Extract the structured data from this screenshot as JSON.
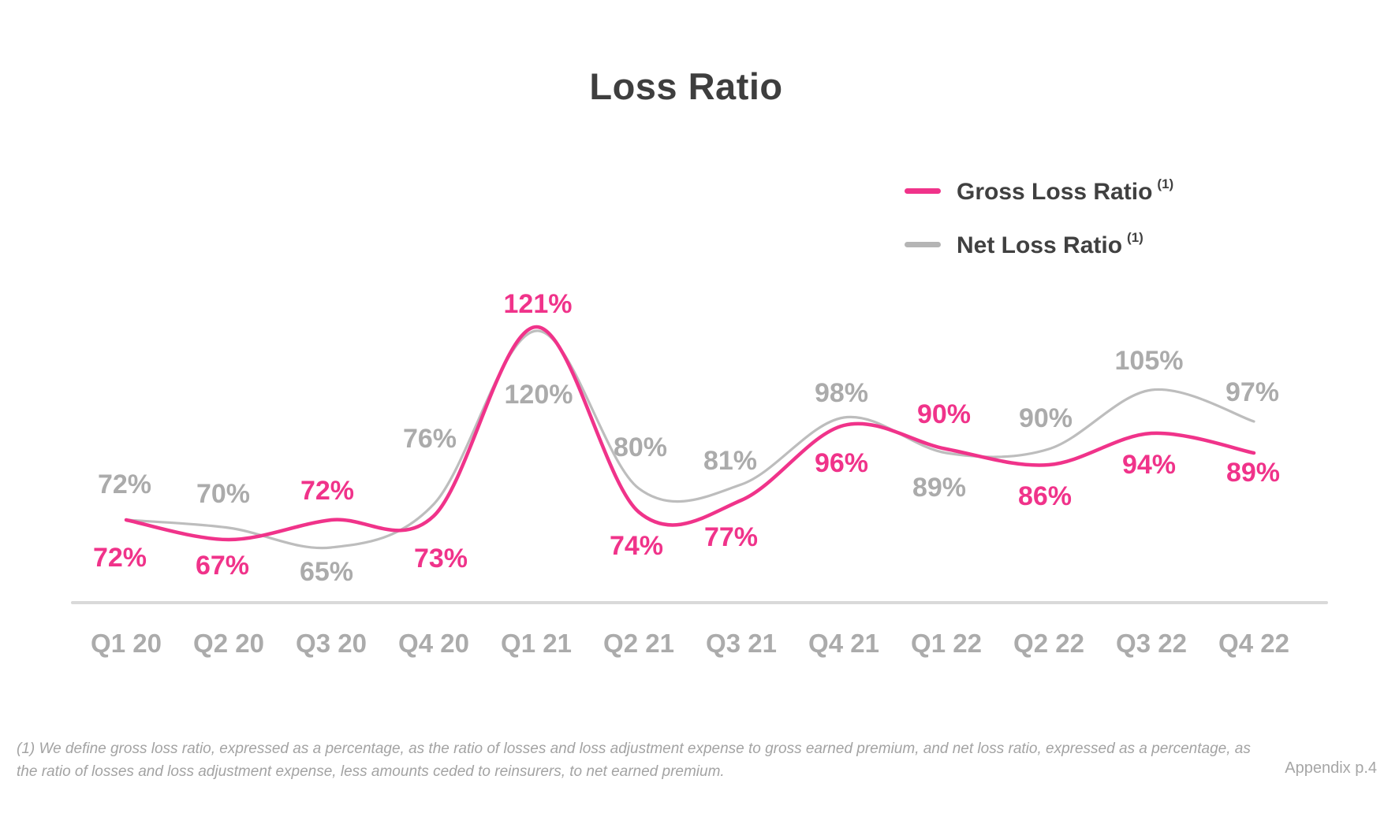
{
  "title": "Loss Ratio",
  "legend": {
    "items": [
      {
        "label": "Gross Loss Ratio",
        "sup": "(1)",
        "color": "#F0338A"
      },
      {
        "label": "Net Loss Ratio",
        "sup": "(1)",
        "color": "#B5B5B5"
      }
    ]
  },
  "chart_data": {
    "type": "line",
    "title": "Loss Ratio",
    "unit": "%",
    "categories": [
      "Q1 20",
      "Q2 20",
      "Q3 20",
      "Q4 20",
      "Q1 21",
      "Q2 21",
      "Q3 21",
      "Q4 21",
      "Q1 22",
      "Q2 22",
      "Q3 22",
      "Q4 22"
    ],
    "series": [
      {
        "name": "Gross Loss Ratio (1)",
        "color": "#F0338A",
        "line_width": 4.5,
        "values": [
          72,
          67,
          72,
          73,
          121,
          74,
          77,
          96,
          90,
          86,
          94,
          89
        ],
        "label_offsets": [
          [
            -8,
            48
          ],
          [
            -8,
            33
          ],
          [
            -5,
            -37
          ],
          [
            9,
            54
          ],
          [
            2,
            -29
          ],
          [
            -3,
            43
          ],
          [
            -13,
            47
          ],
          [
            -3,
            48
          ],
          [
            -3,
            -44
          ],
          [
            -5,
            40
          ],
          [
            -3,
            40
          ],
          [
            -1,
            25
          ]
        ]
      },
      {
        "name": "Net Loss Ratio (1)",
        "color": "#BDBDBD",
        "label_color": "#ABABAB",
        "line_width": 3.2,
        "values": [
          72,
          70,
          65,
          76,
          120,
          80,
          81,
          98,
          89,
          90,
          105,
          97
        ],
        "label_offsets": [
          [
            -2,
            -45
          ],
          [
            -7,
            -43
          ],
          [
            -6,
            31
          ],
          [
            -5,
            -83
          ],
          [
            3,
            81
          ],
          [
            2,
            -52
          ],
          [
            -14,
            -30
          ],
          [
            -3,
            -31
          ],
          [
            -9,
            44
          ],
          [
            -4,
            -39
          ],
          [
            -3,
            -37
          ],
          [
            -2,
            -37
          ]
        ]
      }
    ],
    "xlabel": "",
    "ylabel": "",
    "grid": false,
    "y_axis_visible": false,
    "x_baseline_color": "#D9D9D9",
    "tick_label_color": "#ABABAB",
    "legend_position": "top-right"
  },
  "footnote": {
    "lines": [
      "(1) We define gross loss ratio, expressed as a percentage, as the ratio of losses and loss adjustment expense to gross earned premium, and net loss ratio, expressed as a percentage, as",
      "the ratio of losses and loss adjustment expense, less amounts ceded to reinsurers, to net earned premium."
    ]
  },
  "appendix": "Appendix p.4"
}
